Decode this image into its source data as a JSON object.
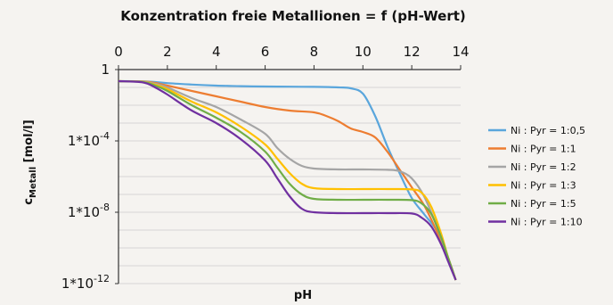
{
  "chart_data": {
    "type": "line",
    "title": "Konzentration freie Metallionen = f (pH-Wert)",
    "xlabel": "pH",
    "ylabel": {
      "main": "c",
      "sub": "Metall",
      "unit": " [mol/l]"
    },
    "x_ticks": [
      "0",
      "2",
      "4",
      "6",
      "8",
      "10",
      "12",
      "14"
    ],
    "y_ticks": [
      {
        "value": 0,
        "mantissa": "1",
        "exp": ""
      },
      {
        "value": -4,
        "mantissa": "1*10",
        "exp": "-4"
      },
      {
        "value": -8,
        "mantissa": "1*10",
        "exp": "-8"
      },
      {
        "value": -12,
        "mantissa": "1*10",
        "exp": "-12"
      }
    ],
    "xlim": [
      0,
      14
    ],
    "ylim_log10": [
      -12,
      0
    ],
    "y_scale": "log",
    "x_axis_position": "top",
    "grid": "horizontal minor decades",
    "legend_position": "right",
    "series": [
      {
        "name": "Ni : Pyr = 1:0,5",
        "color": "#5aa6dc",
        "x": [
          0,
          1,
          1.5,
          2,
          3,
          4,
          5,
          6,
          7,
          8,
          9,
          9.5,
          10,
          10.5,
          11,
          11.5,
          12,
          12.5,
          13,
          13.5,
          13.8
        ],
        "y_log10": [
          -0.65,
          -0.66,
          -0.7,
          -0.76,
          -0.84,
          -0.9,
          -0.93,
          -0.95,
          -0.96,
          -0.97,
          -1.0,
          -1.05,
          -1.35,
          -2.6,
          -4.3,
          -5.8,
          -7.2,
          -8.1,
          -9.0,
          -10.6,
          -11.8
        ]
      },
      {
        "name": "Ni : Pyr = 1:1",
        "color": "#ed7d31",
        "x": [
          0,
          1,
          1.5,
          2,
          3,
          4,
          5,
          6,
          7,
          8,
          8.5,
          9,
          9.5,
          10,
          10.5,
          11,
          11.5,
          12,
          12.5,
          13,
          13.5,
          13.8
        ],
        "y_log10": [
          -0.65,
          -0.67,
          -0.75,
          -0.9,
          -1.2,
          -1.5,
          -1.8,
          -2.1,
          -2.3,
          -2.4,
          -2.6,
          -2.9,
          -3.3,
          -3.5,
          -3.8,
          -4.6,
          -5.6,
          -6.6,
          -7.6,
          -9.0,
          -10.6,
          -11.8
        ]
      },
      {
        "name": "Ni : Pyr = 1:2",
        "color": "#a5a5a5",
        "x": [
          0,
          1,
          1.5,
          2,
          3,
          4,
          5,
          6,
          6.5,
          7,
          7.5,
          8,
          9,
          10,
          11,
          11.5,
          12,
          12.5,
          13,
          13.5,
          13.8
        ],
        "y_log10": [
          -0.65,
          -0.68,
          -0.8,
          -1.0,
          -1.6,
          -2.1,
          -2.8,
          -3.6,
          -4.4,
          -5.0,
          -5.4,
          -5.55,
          -5.6,
          -5.6,
          -5.62,
          -5.7,
          -6.1,
          -7.1,
          -8.7,
          -10.6,
          -11.8
        ]
      },
      {
        "name": "Ni : Pyr = 1:3",
        "color": "#ffc000",
        "x": [
          0,
          1,
          1.5,
          2,
          3,
          4,
          5,
          6,
          6.5,
          7,
          7.5,
          8,
          9,
          10,
          11,
          12,
          12.4,
          12.8,
          13.2,
          13.5,
          13.8
        ],
        "y_log10": [
          -0.65,
          -0.69,
          -0.85,
          -1.1,
          -1.8,
          -2.4,
          -3.2,
          -4.2,
          -5.0,
          -5.8,
          -6.4,
          -6.65,
          -6.7,
          -6.7,
          -6.7,
          -6.72,
          -6.9,
          -7.7,
          -9.2,
          -10.6,
          -11.8
        ]
      },
      {
        "name": "Ni : Pyr = 1:5",
        "color": "#70ad47",
        "x": [
          0,
          1,
          1.5,
          2,
          3,
          4,
          5,
          6,
          6.5,
          7,
          7.5,
          8,
          9,
          10,
          11,
          12,
          12.4,
          12.8,
          13.2,
          13.5,
          13.8
        ],
        "y_log10": [
          -0.65,
          -0.7,
          -0.9,
          -1.2,
          -2.0,
          -2.7,
          -3.5,
          -4.6,
          -5.5,
          -6.4,
          -7.0,
          -7.25,
          -7.3,
          -7.3,
          -7.3,
          -7.32,
          -7.5,
          -8.1,
          -9.4,
          -10.6,
          -11.8
        ]
      },
      {
        "name": "Ni : Pyr = 1:10",
        "color": "#7030a0",
        "x": [
          0,
          1,
          1.5,
          2,
          3,
          4,
          5,
          6,
          6.5,
          7,
          7.5,
          8,
          9,
          10,
          11,
          12,
          12.4,
          12.8,
          13.2,
          13.5,
          13.8
        ],
        "y_log10": [
          -0.65,
          -0.72,
          -1.0,
          -1.4,
          -2.3,
          -3.0,
          -3.9,
          -5.1,
          -6.1,
          -7.1,
          -7.8,
          -8.0,
          -8.05,
          -8.05,
          -8.05,
          -8.07,
          -8.3,
          -8.8,
          -9.8,
          -10.8,
          -11.8
        ]
      }
    ]
  }
}
